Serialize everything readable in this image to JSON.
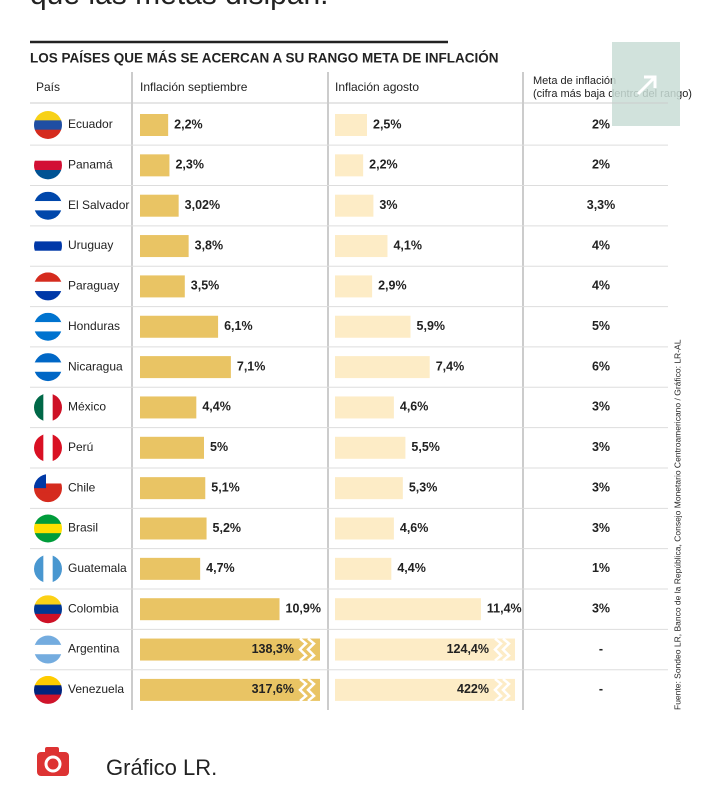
{
  "top_text": "que las metas disipan.",
  "chart_data": {
    "type": "bar",
    "title": "LOS PAÍSES QUE MÁS SE ACERCAN A SU RANGO META DE INFLACIÓN",
    "category_header": "País",
    "categories": [
      "Ecuador",
      "Panamá",
      "El Salvador",
      "Uruguay",
      "Paraguay",
      "Honduras",
      "Nicaragua",
      "México",
      "Perú",
      "Chile",
      "Brasil",
      "Guatemala",
      "Colombia",
      "Argentina",
      "Venezuela"
    ],
    "series": [
      {
        "name": "Inflación septiembre",
        "color": "#e9c464",
        "values": [
          2.2,
          2.3,
          3.02,
          3.8,
          3.5,
          6.1,
          7.1,
          4.4,
          5,
          5.1,
          5.2,
          4.7,
          10.9,
          138.3,
          317.6
        ],
        "value_labels": [
          "2,2%",
          "2,3%",
          "3,02%",
          "3,8%",
          "3,5%",
          "6,1%",
          "7,1%",
          "4,4%",
          "5%",
          "5,1%",
          "5,2%",
          "4,7%",
          "10,9%",
          "138,3%",
          "317,6%"
        ]
      },
      {
        "name": "Inflación agosto",
        "color": "#fdecc6",
        "values": [
          2.5,
          2.2,
          3,
          4.1,
          2.9,
          5.9,
          7.4,
          4.6,
          5.5,
          5.3,
          4.6,
          4.4,
          11.4,
          124.4,
          422
        ],
        "value_labels": [
          "2,5%",
          "2,2%",
          "3%",
          "4,1%",
          "2,9%",
          "5,9%",
          "7,4%",
          "4,6%",
          "5,5%",
          "5,3%",
          "4,6%",
          "4,4%",
          "11,4%",
          "124,4%",
          "422%"
        ]
      }
    ],
    "target_header": "Meta de inflación",
    "target_subheader": "(cifra más baja dentro del rango)",
    "target_labels": [
      "2%",
      "2%",
      "3,3%",
      "4%",
      "4%",
      "5%",
      "6%",
      "3%",
      "3%",
      "3%",
      "3%",
      "1%",
      "3%",
      "-",
      "-"
    ],
    "source": "Fuente: Sondeo LR, Banco de la República, Consejo Monetario Centroamericano / Gráfico: LR-AL"
  },
  "footer": "Gráfico LR."
}
